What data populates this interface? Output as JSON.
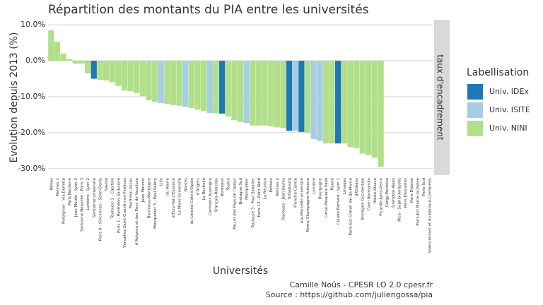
{
  "chart_data": {
    "type": "bar",
    "title": "Répartition des montants du PIA entre les universités",
    "xlabel": "Universités",
    "ylabel": "Evolution depuis 2013 (%)",
    "facet": "taux d'encadrement",
    "caption": [
      "Camille Noûs - CPESR LO 2.0 cpesr.fr",
      "Source : https://github.com/juliengossa/pia"
    ],
    "categories": [
      "Nîmes",
      "Rennes 1",
      "Perpignan - Via Domitia",
      "Paris Nanterre",
      "Jean Moulin - Lyon 3",
      "Sorbonne Nouvelle - Paris 3",
      "Lumière - Lyon 2",
      "Sorbonne Université",
      "Paris 8 - Vincennes - Saint-Denis",
      "Savoie",
      "Toulouse 1 - Capitole",
      "Paris 1 - Panthéon-Sorbonne",
      "Versailles Saint-Quentin-en-Yvelines",
      "Panthéon-Assas",
      "d'Avignon et des Pays de Vaucluse",
      "Jean Monnet",
      "Bordeaux-Montaigne",
      "Montpellier 3 - Paul Valéry",
      "Lille",
      "du Havre",
      "d'Évry-Val d'Essonne",
      "Le Mans Université",
      "Nantes",
      "du Littoral Côte d'Opale",
      "d'Angers",
      "La Rochelle",
      "Clermont Auvergne",
      "François-Rabelais",
      "Bordeaux",
      "Toulon",
      "Pau et des Pays de l'Adour",
      "Bretagne-Sud",
      "Montpellier",
      "Toulouse 3 - Paul Sabatier",
      "Paris 13 - Paris Nord",
      "La Réunion",
      "Poitiers",
      "Rennes 2",
      "Toulouse - Jean Jaurès",
      "Strasbourg",
      "Franche-Comté",
      "Aix-Marseille université",
      "Reims Champagne-Ardenne",
      "Lorraine",
      "Bourgogne",
      "Corse Pasquale Paoli",
      "Rouen",
      "Claude Bernard - Lyon 1",
      "Limoges",
      "Paris-Est Créteil Val-de-Marne",
      "d'Orléans",
      "Bretagne Occidentale",
      "Caen Normandie",
      "Haute-Alsace",
      "Picardie Jules-Verne",
      "Cergy-Pontoise",
      "Grenoble Alpes",
      "Nice - Sophia-Antipolis",
      "Paris Descartes",
      "Paris Diderot",
      "Paris-Est Marne-la-Vallée",
      "Paris-Sud",
      "Valenciennes et du Hainaut-Cambrésis"
    ],
    "values": [
      8.5,
      5.3,
      2,
      0.5,
      -0.8,
      -0.8,
      -3.5,
      -5,
      -5.3,
      -5.5,
      -6,
      -7,
      -8.3,
      -8.5,
      -9,
      -9.8,
      -11,
      -11.5,
      -11.8,
      -12,
      -12.3,
      -12.5,
      -12.8,
      -13.2,
      -13.6,
      -14,
      -14.5,
      -14.6,
      -14.7,
      -15.5,
      -16.5,
      -17,
      -17.3,
      -18,
      -18,
      -18,
      -18.2,
      -18.5,
      -18.7,
      -19.5,
      -19.5,
      -19.8,
      -20,
      -21.8,
      -22.3,
      -23,
      -23,
      -23,
      -23,
      -24,
      -24.3,
      -25.8,
      -26.3,
      -27,
      -29.5,
      null,
      null,
      null,
      null,
      null,
      null,
      null,
      null
    ],
    "groups": [
      "Univ. NINI",
      "Univ. NINI",
      "Univ. NINI",
      "Univ. NINI",
      "Univ. NINI",
      "Univ. NINI",
      "Univ. NINI",
      "Univ. IDEx",
      "Univ. NINI",
      "Univ. NINI",
      "Univ. NINI",
      "Univ. NINI",
      "Univ. NINI",
      "Univ. NINI",
      "Univ. NINI",
      "Univ. NINI",
      "Univ. NINI",
      "Univ. NINI",
      "Univ. ISITE",
      "Univ. NINI",
      "Univ. NINI",
      "Univ. NINI",
      "Univ. ISITE",
      "Univ. NINI",
      "Univ. NINI",
      "Univ. NINI",
      "Univ. ISITE",
      "Univ. NINI",
      "Univ. IDEx",
      "Univ. NINI",
      "Univ. NINI",
      "Univ. NINI",
      "Univ. ISITE",
      "Univ. NINI",
      "Univ. NINI",
      "Univ. NINI",
      "Univ. NINI",
      "Univ. NINI",
      "Univ. NINI",
      "Univ. IDEx",
      "Univ. ISITE",
      "Univ. IDEx",
      "Univ. NINI",
      "Univ. ISITE",
      "Univ. ISITE",
      "Univ. NINI",
      "Univ. NINI",
      "Univ. IDEx",
      "Univ. NINI",
      "Univ. NINI",
      "Univ. NINI",
      "Univ. NINI",
      "Univ. NINI",
      "Univ. NINI",
      "Univ. NINI",
      "Univ. NINI",
      "Univ. NINI",
      "Univ. NINI",
      "Univ. NINI",
      "Univ. NINI",
      "Univ. NINI",
      "Univ. NINI",
      "Univ. NINI"
    ],
    "legend": {
      "title": "Labellisation",
      "items": [
        {
          "name": "Univ. IDEx",
          "color": "#1f78b4"
        },
        {
          "name": "Univ. ISITE",
          "color": "#a6cee3"
        },
        {
          "name": "Univ. NINI",
          "color": "#b2df8a"
        }
      ]
    },
    "ylim": [
      -31.8,
      11.4
    ],
    "yticks": [
      {
        "value": -30,
        "label": "-30.0%"
      },
      {
        "value": -20,
        "label": "-20.0%"
      },
      {
        "value": -10,
        "label": "-10.0%"
      },
      {
        "value": 0,
        "label": "0.0%"
      },
      {
        "value": 10,
        "label": "10.0%"
      }
    ],
    "grid": true
  }
}
